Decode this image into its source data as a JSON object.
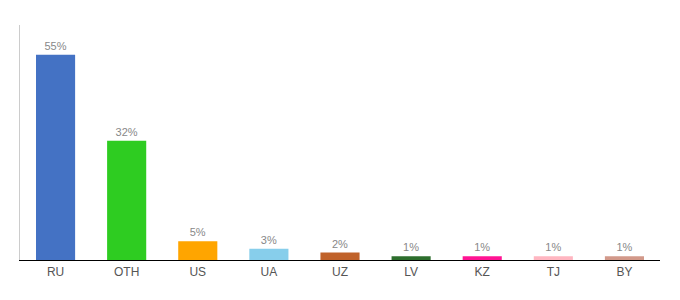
{
  "chart_data": {
    "type": "bar",
    "categories": [
      "RU",
      "OTH",
      "US",
      "UA",
      "UZ",
      "LV",
      "KZ",
      "TJ",
      "BY"
    ],
    "values": [
      55,
      32,
      5,
      3,
      2,
      1,
      1,
      1,
      1
    ],
    "value_labels": [
      "55%",
      "32%",
      "5%",
      "3%",
      "2%",
      "1%",
      "1%",
      "1%",
      "1%"
    ],
    "data_labels": true,
    "colors": [
      "#4472c4",
      "#2ecc21",
      "#ffa500",
      "#87ceeb",
      "#c0622a",
      "#2d6e2d",
      "#ff1493",
      "#ffb6c1",
      "#d2998a"
    ],
    "ylim": [
      0,
      63
    ],
    "grid": false,
    "tick_labels": "x"
  }
}
